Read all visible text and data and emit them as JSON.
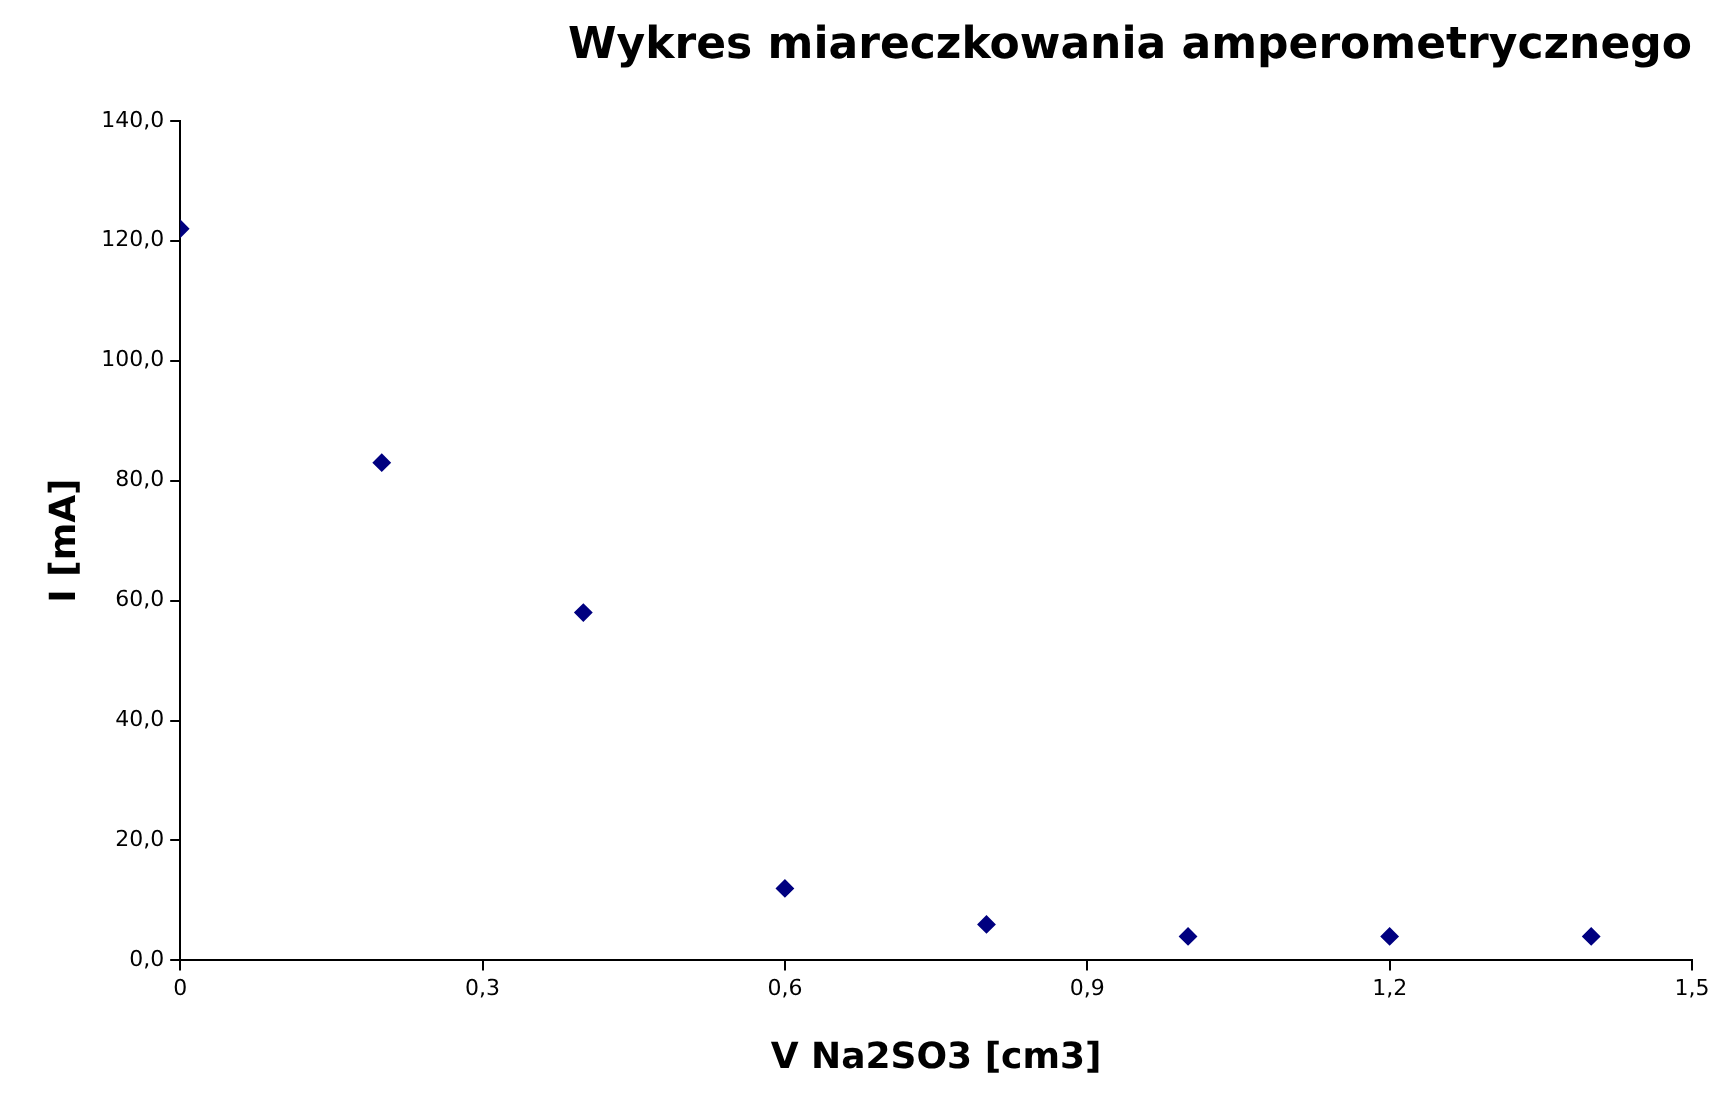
{
  "chart_data": {
    "type": "scatter",
    "title": "Wykres miareczkowania amperometrycznego",
    "xlabel": "V Na2SO3 [cm3]",
    "ylabel": "I [mA]",
    "x": [
      0,
      0.2,
      0.4,
      0.6,
      0.8,
      1.0,
      1.2,
      1.4
    ],
    "values": [
      122,
      83,
      58,
      12,
      6,
      4,
      4,
      4
    ],
    "color": "#000080",
    "marker": "diamond",
    "xlim": [
      0,
      1.5
    ],
    "xticks": [
      0,
      {
        "value": 0.3,
        "label": "0,3"
      },
      {
        "value": 0.6,
        "label": "0,6"
      },
      {
        "value": 0.9,
        "label": "0,9"
      },
      {
        "value": 1.2,
        "label": "1,2"
      },
      {
        "value": 1.5,
        "label": "1,5"
      }
    ],
    "ylim": [
      0,
      140
    ],
    "yticks": [
      {
        "value": 0,
        "label": "0,0"
      },
      {
        "value": 20,
        "label": "20,0"
      },
      {
        "value": 40,
        "label": "40,0"
      },
      {
        "value": 60,
        "label": "60,0"
      },
      {
        "value": 80,
        "label": "80,0"
      },
      {
        "value": 100,
        "label": "100,0"
      },
      {
        "value": 120,
        "label": "120,0"
      },
      {
        "value": 140,
        "label": "140,0"
      }
    ],
    "grid": false,
    "legend": false
  }
}
